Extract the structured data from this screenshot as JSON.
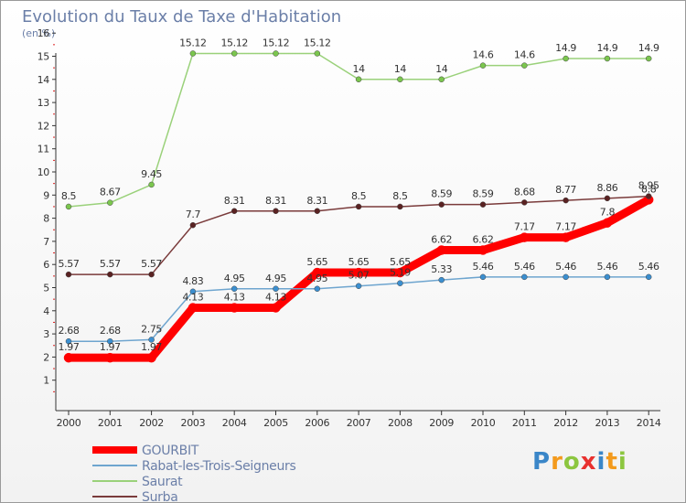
{
  "chart_data": {
    "type": "line",
    "title": "Evolution du Taux de Taxe d'Habitation",
    "subtitle": "(en %)",
    "x": [
      "2000",
      "2001",
      "2002",
      "2003",
      "2004",
      "2005",
      "2006",
      "2007",
      "2008",
      "2009",
      "2010",
      "2011",
      "2012",
      "2013",
      "2014"
    ],
    "ylim": [
      0,
      16
    ],
    "yticks": [
      1,
      2,
      3,
      4,
      5,
      6,
      7,
      8,
      9,
      10,
      11,
      12,
      13,
      14,
      15,
      16
    ],
    "grid": false,
    "legend_position": "bottom-left",
    "series": [
      {
        "name": "GOURBIT",
        "color": "#ff0000",
        "marker": "#ff0000",
        "width": 9,
        "values": [
          1.97,
          1.97,
          1.97,
          4.13,
          4.13,
          4.13,
          5.65,
          5.65,
          5.65,
          6.62,
          6.62,
          7.17,
          7.17,
          7.8,
          8.8
        ],
        "labels": [
          "1.97",
          "1.97",
          "1.97",
          "4.13",
          "4.13",
          "4.13",
          "5.65",
          "5.65",
          "5.65",
          "6.62",
          "6.62",
          "7.17",
          "7.17",
          "7.8",
          "8.8"
        ]
      },
      {
        "name": "Rabat-les-Trois-Seigneurs",
        "color": "#6ea5cf",
        "marker": "#3b8fd0",
        "width": 1.5,
        "values": [
          2.68,
          2.68,
          2.75,
          4.83,
          4.95,
          4.95,
          4.95,
          5.07,
          5.19,
          5.33,
          5.46,
          5.46,
          5.46,
          5.46,
          5.46
        ],
        "labels": [
          "2.68",
          "2.68",
          "2.75",
          "4.83",
          "4.95",
          "4.95",
          "4.95",
          "5.07",
          "5.19",
          "5.33",
          "5.46",
          "5.46",
          "5.46",
          "5.46",
          "5.46"
        ]
      },
      {
        "name": "Saurat",
        "color": "#9ad17a",
        "marker": "#7bc64e",
        "width": 1.5,
        "values": [
          8.5,
          8.67,
          9.45,
          15.12,
          15.12,
          15.12,
          15.12,
          14,
          14,
          14,
          14.6,
          14.6,
          14.9,
          14.9,
          14.9
        ],
        "labels": [
          "8.5",
          "8.67",
          "9.45",
          "15.12",
          "15.12",
          "15.12",
          "15.12",
          "14",
          "14",
          "14",
          "14.6",
          "14.6",
          "14.9",
          "14.9",
          "14.9"
        ]
      },
      {
        "name": "Surba",
        "color": "#7a3b3b",
        "marker": "#5a2222",
        "width": 1.5,
        "values": [
          5.57,
          5.57,
          5.57,
          7.7,
          8.31,
          8.31,
          8.31,
          8.5,
          8.5,
          8.59,
          8.59,
          8.68,
          8.77,
          8.86,
          8.95
        ],
        "labels": [
          "5.57",
          "5.57",
          "5.57",
          "7.7",
          "8.31",
          "8.31",
          "8.31",
          "8.5",
          "8.5",
          "8.59",
          "8.59",
          "8.68",
          "8.77",
          "8.86",
          "8.95"
        ]
      }
    ]
  },
  "logo": {
    "letters": [
      "P",
      "r",
      "o",
      "x",
      "i",
      "t",
      "i"
    ],
    "colors": [
      "#3a86c8",
      "#f39a1d",
      "#8cc63f",
      "#e8312f",
      "#3a86c8",
      "#f39a1d",
      "#8cc63f"
    ]
  }
}
